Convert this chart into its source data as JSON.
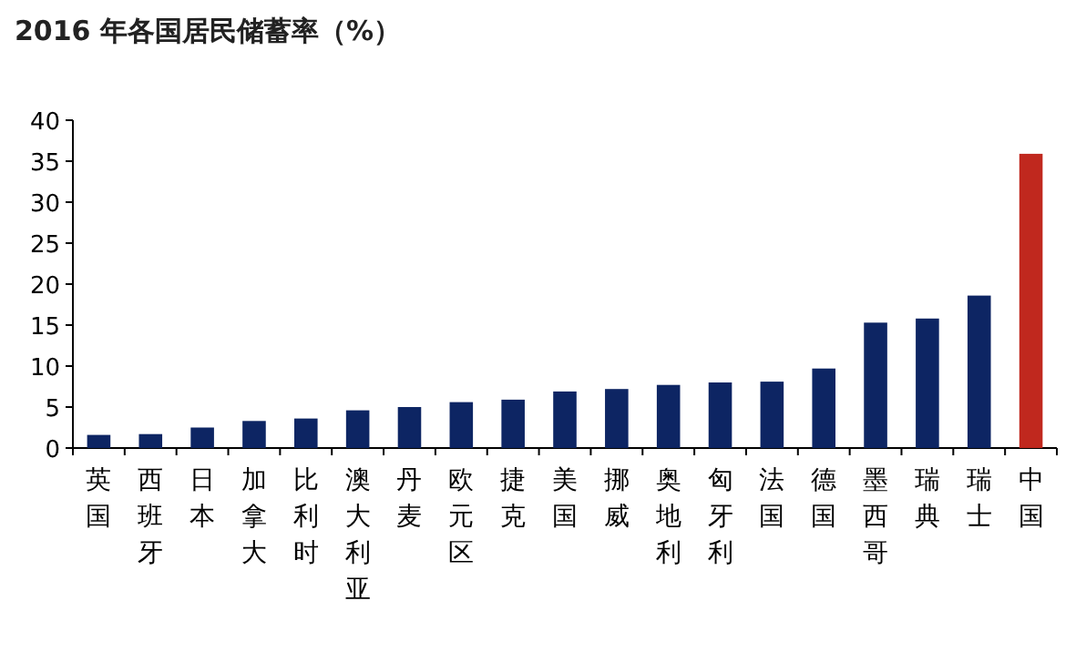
{
  "chart_data": {
    "type": "bar",
    "title": "2016 年各国居民储蓄率（%）",
    "categories": [
      "英国",
      "西班牙",
      "日本",
      "加拿大",
      "比利时",
      "澳大利亚",
      "丹麦",
      "欧元区",
      "捷克",
      "美国",
      "挪威",
      "奥地利",
      "匈牙利",
      "法国",
      "德国",
      "墨西哥",
      "瑞典",
      "瑞士",
      "中国"
    ],
    "values": [
      1.6,
      1.7,
      2.5,
      3.3,
      3.6,
      4.6,
      5.0,
      5.6,
      5.9,
      6.9,
      7.2,
      7.7,
      8.0,
      8.1,
      9.7,
      15.3,
      15.8,
      18.6,
      35.9
    ],
    "colors": [
      "#0d2563",
      "#0d2563",
      "#0d2563",
      "#0d2563",
      "#0d2563",
      "#0d2563",
      "#0d2563",
      "#0d2563",
      "#0d2563",
      "#0d2563",
      "#0d2563",
      "#0d2563",
      "#0d2563",
      "#0d2563",
      "#0d2563",
      "#0d2563",
      "#0d2563",
      "#0d2563",
      "#c0281e"
    ],
    "ylim": [
      0,
      40
    ],
    "yticks": [
      0,
      5,
      10,
      15,
      20,
      25,
      30,
      35,
      40
    ],
    "grid": false
  }
}
